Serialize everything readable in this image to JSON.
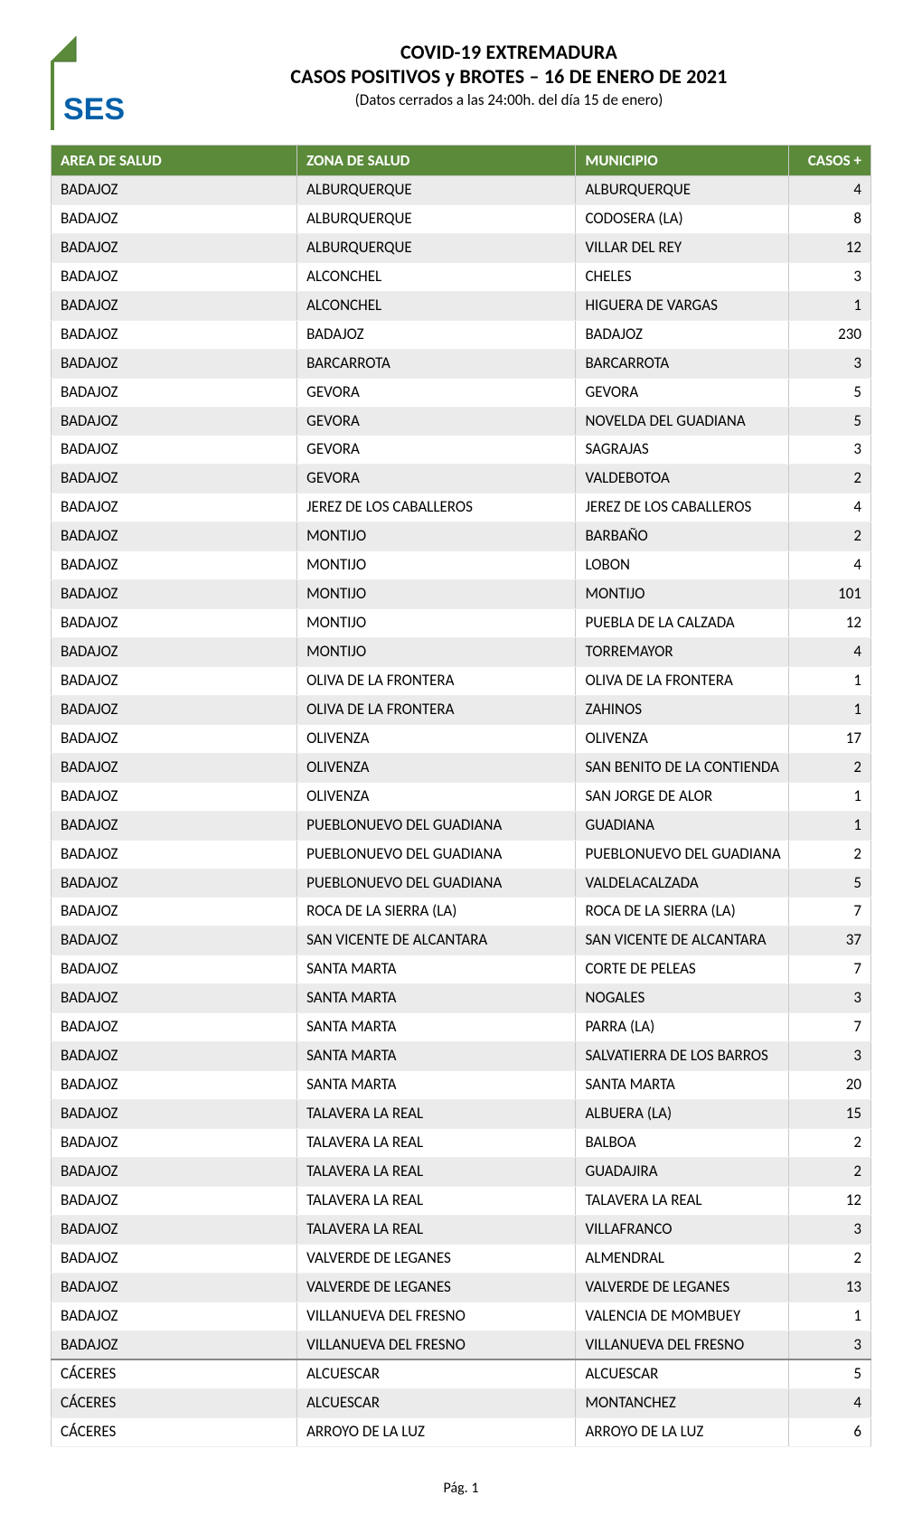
{
  "header": {
    "logo_alt": "SES logo",
    "title_line1": "COVID-19 EXTREMADURA",
    "title_line2": "CASOS POSITIVOS y BROTES – 16 DE ENERO DE 2021",
    "title_line3": "(Datos cerrados a las 24:00h. del día 15 de enero)"
  },
  "logo": {
    "corner_color": "#5a8a3a",
    "text": "SES",
    "text_color": "#0060a9"
  },
  "table": {
    "header_bg": "#5a8a3a",
    "header_fg": "#ffffff",
    "shade_bg": "#ebebeb",
    "border_color": "#c8c8c8",
    "columns": [
      "AREA DE SALUD",
      "ZONA DE SALUD",
      "MUNICIPIO",
      "CASOS +"
    ],
    "col_widths_pct": [
      30,
      34,
      26,
      10
    ],
    "rows": [
      {
        "area": "BADAJOZ",
        "zona": "ALBURQUERQUE",
        "municipio": "ALBURQUERQUE",
        "casos": "4",
        "shaded": true
      },
      {
        "area": "BADAJOZ",
        "zona": "ALBURQUERQUE",
        "municipio": "CODOSERA (LA)",
        "casos": "8",
        "shaded": false
      },
      {
        "area": "BADAJOZ",
        "zona": "ALBURQUERQUE",
        "municipio": "VILLAR DEL REY",
        "casos": "12",
        "shaded": true
      },
      {
        "area": "BADAJOZ",
        "zona": "ALCONCHEL",
        "municipio": "CHELES",
        "casos": "3",
        "shaded": false
      },
      {
        "area": "BADAJOZ",
        "zona": "ALCONCHEL",
        "municipio": "HIGUERA DE VARGAS",
        "casos": "1",
        "shaded": true
      },
      {
        "area": "BADAJOZ",
        "zona": "BADAJOZ",
        "municipio": "BADAJOZ",
        "casos": "230",
        "shaded": false
      },
      {
        "area": "BADAJOZ",
        "zona": "BARCARROTA",
        "municipio": "BARCARROTA",
        "casos": "3",
        "shaded": true
      },
      {
        "area": "BADAJOZ",
        "zona": "GEVORA",
        "municipio": "GEVORA",
        "casos": "5",
        "shaded": false
      },
      {
        "area": "BADAJOZ",
        "zona": "GEVORA",
        "municipio": "NOVELDA DEL GUADIANA",
        "casos": "5",
        "shaded": true
      },
      {
        "area": "BADAJOZ",
        "zona": "GEVORA",
        "municipio": "SAGRAJAS",
        "casos": "3",
        "shaded": false
      },
      {
        "area": "BADAJOZ",
        "zona": "GEVORA",
        "municipio": "VALDEBOTOA",
        "casos": "2",
        "shaded": true
      },
      {
        "area": "BADAJOZ",
        "zona": "JEREZ DE LOS CABALLEROS",
        "municipio": "JEREZ DE LOS CABALLEROS",
        "casos": "4",
        "shaded": false
      },
      {
        "area": "BADAJOZ",
        "zona": "MONTIJO",
        "municipio": "BARBAÑO",
        "casos": "2",
        "shaded": true
      },
      {
        "area": "BADAJOZ",
        "zona": "MONTIJO",
        "municipio": "LOBON",
        "casos": "4",
        "shaded": false
      },
      {
        "area": "BADAJOZ",
        "zona": "MONTIJO",
        "municipio": "MONTIJO",
        "casos": "101",
        "shaded": true
      },
      {
        "area": "BADAJOZ",
        "zona": "MONTIJO",
        "municipio": "PUEBLA DE LA CALZADA",
        "casos": "12",
        "shaded": false
      },
      {
        "area": "BADAJOZ",
        "zona": "MONTIJO",
        "municipio": "TORREMAYOR",
        "casos": "4",
        "shaded": true
      },
      {
        "area": "BADAJOZ",
        "zona": "OLIVA DE LA FRONTERA",
        "municipio": "OLIVA DE LA FRONTERA",
        "casos": "1",
        "shaded": false
      },
      {
        "area": "BADAJOZ",
        "zona": "OLIVA DE LA FRONTERA",
        "municipio": "ZAHINOS",
        "casos": "1",
        "shaded": true
      },
      {
        "area": "BADAJOZ",
        "zona": "OLIVENZA",
        "municipio": "OLIVENZA",
        "casos": "17",
        "shaded": false
      },
      {
        "area": "BADAJOZ",
        "zona": "OLIVENZA",
        "municipio": "SAN BENITO DE LA CONTIENDA",
        "casos": "2",
        "shaded": true
      },
      {
        "area": "BADAJOZ",
        "zona": "OLIVENZA",
        "municipio": "SAN JORGE DE ALOR",
        "casos": "1",
        "shaded": false
      },
      {
        "area": "BADAJOZ",
        "zona": "PUEBLONUEVO DEL GUADIANA",
        "municipio": "GUADIANA",
        "casos": "1",
        "shaded": true
      },
      {
        "area": "BADAJOZ",
        "zona": "PUEBLONUEVO DEL GUADIANA",
        "municipio": "PUEBLONUEVO DEL GUADIANA",
        "casos": "2",
        "shaded": false
      },
      {
        "area": "BADAJOZ",
        "zona": "PUEBLONUEVO DEL GUADIANA",
        "municipio": "VALDELACALZADA",
        "casos": "5",
        "shaded": true
      },
      {
        "area": "BADAJOZ",
        "zona": "ROCA DE LA SIERRA (LA)",
        "municipio": "ROCA DE LA SIERRA (LA)",
        "casos": "7",
        "shaded": false
      },
      {
        "area": "BADAJOZ",
        "zona": "SAN VICENTE DE ALCANTARA",
        "municipio": "SAN VICENTE DE  ALCANTARA",
        "casos": "37",
        "shaded": true
      },
      {
        "area": "BADAJOZ",
        "zona": "SANTA MARTA",
        "municipio": "CORTE DE PELEAS",
        "casos": "7",
        "shaded": false
      },
      {
        "area": "BADAJOZ",
        "zona": "SANTA MARTA",
        "municipio": "NOGALES",
        "casos": "3",
        "shaded": true
      },
      {
        "area": "BADAJOZ",
        "zona": "SANTA MARTA",
        "municipio": "PARRA (LA)",
        "casos": "7",
        "shaded": false
      },
      {
        "area": "BADAJOZ",
        "zona": "SANTA MARTA",
        "municipio": "SALVATIERRA DE LOS BARROS",
        "casos": "3",
        "shaded": true
      },
      {
        "area": "BADAJOZ",
        "zona": "SANTA MARTA",
        "municipio": "SANTA MARTA",
        "casos": "20",
        "shaded": false
      },
      {
        "area": "BADAJOZ",
        "zona": "TALAVERA LA REAL",
        "municipio": "ALBUERA (LA)",
        "casos": "15",
        "shaded": true
      },
      {
        "area": "BADAJOZ",
        "zona": "TALAVERA LA REAL",
        "municipio": "BALBOA",
        "casos": "2",
        "shaded": false
      },
      {
        "area": "BADAJOZ",
        "zona": "TALAVERA LA REAL",
        "municipio": "GUADAJIRA",
        "casos": "2",
        "shaded": true
      },
      {
        "area": "BADAJOZ",
        "zona": "TALAVERA LA REAL",
        "municipio": "TALAVERA LA REAL",
        "casos": "12",
        "shaded": false
      },
      {
        "area": "BADAJOZ",
        "zona": "TALAVERA LA REAL",
        "municipio": "VILLAFRANCO",
        "casos": "3",
        "shaded": true
      },
      {
        "area": "BADAJOZ",
        "zona": "VALVERDE DE LEGANES",
        "municipio": "ALMENDRAL",
        "casos": "2",
        "shaded": false
      },
      {
        "area": "BADAJOZ",
        "zona": "VALVERDE DE LEGANES",
        "municipio": "VALVERDE DE LEGANES",
        "casos": "13",
        "shaded": true
      },
      {
        "area": "BADAJOZ",
        "zona": "VILLANUEVA DEL FRESNO",
        "municipio": "VALENCIA DE MOMBUEY",
        "casos": "1",
        "shaded": false
      },
      {
        "area": "BADAJOZ",
        "zona": "VILLANUEVA DEL FRESNO",
        "municipio": "VILLANUEVA DEL FRESNO",
        "casos": "3",
        "shaded": true,
        "group_end": true
      },
      {
        "area": "CÁCERES",
        "zona": "ALCUESCAR",
        "municipio": "ALCUESCAR",
        "casos": "5",
        "shaded": false
      },
      {
        "area": "CÁCERES",
        "zona": "ALCUESCAR",
        "municipio": "MONTANCHEZ",
        "casos": "4",
        "shaded": true
      },
      {
        "area": "CÁCERES",
        "zona": "ARROYO DE LA LUZ",
        "municipio": "ARROYO DE LA LUZ",
        "casos": "6",
        "shaded": false
      }
    ]
  },
  "footer": {
    "page_label": "Pág. 1"
  }
}
